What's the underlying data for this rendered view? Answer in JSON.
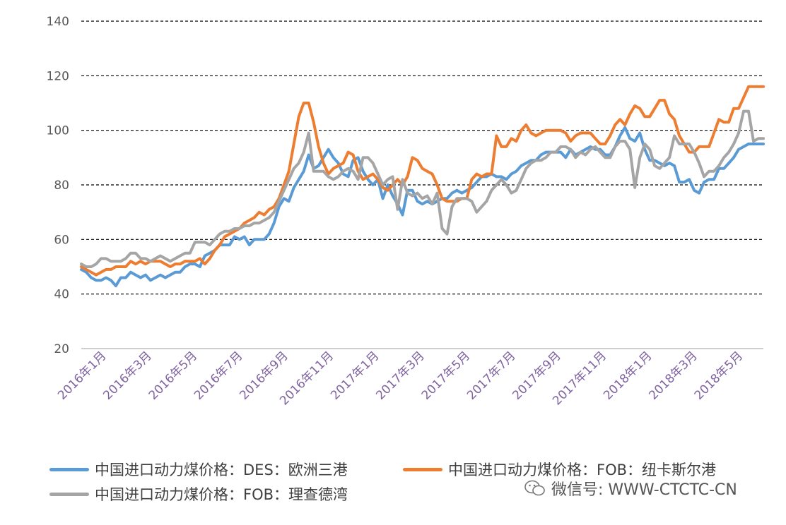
{
  "chart_data": {
    "type": "line",
    "title": "",
    "xlabel": "",
    "ylabel": "",
    "ylim": [
      20,
      140
    ],
    "yticks": [
      20,
      40,
      60,
      80,
      100,
      120,
      140
    ],
    "grid": "horizontal dashed",
    "legend_position": "bottom",
    "x_tick_labels": [
      "2016年1月",
      "2016年3月",
      "2016年5月",
      "2016年7月",
      "2016年9月",
      "2016年11月",
      "2017年1月",
      "2017年3月",
      "2017年5月",
      "2017年7月",
      "2017年9月",
      "2017年11月",
      "2018年1月",
      "2018年3月",
      "2018年5月"
    ],
    "series": [
      {
        "name": "中国进口动力煤价格：DES：欧洲三港",
        "color": "#5b9bd5",
        "values": [
          49,
          48,
          46,
          45,
          45,
          46,
          45,
          43,
          46,
          46,
          48,
          47,
          46,
          47,
          45,
          46,
          47,
          46,
          47,
          48,
          48,
          50,
          51,
          51,
          50,
          54,
          55,
          56,
          58,
          58,
          58,
          61,
          60,
          61,
          58,
          60,
          60,
          60,
          62,
          66,
          72,
          75,
          74,
          79,
          82,
          85,
          91,
          86,
          87,
          90,
          93,
          90,
          88,
          84,
          83,
          89,
          90,
          85,
          82,
          80,
          82,
          75,
          80,
          76,
          73,
          69,
          78,
          78,
          74,
          73,
          74,
          73,
          74,
          75,
          75,
          77,
          78,
          77,
          78,
          79,
          81,
          83,
          83,
          84,
          83,
          83,
          82,
          84,
          85,
          87,
          88,
          89,
          89,
          91,
          92,
          92,
          92,
          92,
          90,
          93,
          91,
          92,
          93,
          94,
          93,
          93,
          91,
          91,
          94,
          98,
          101,
          97,
          96,
          99,
          93,
          89,
          89,
          88,
          87,
          88,
          87,
          81,
          81,
          82,
          78,
          77,
          81,
          82,
          82,
          86,
          86,
          88,
          90,
          93,
          94,
          95,
          95,
          95,
          95
        ]
      },
      {
        "name": "中国进口动力煤价格：FOB：纽卡斯尔港",
        "color": "#ed7d31",
        "values": [
          50,
          49,
          48,
          47,
          48,
          49,
          49,
          50,
          50,
          50,
          52,
          51,
          52,
          51,
          52,
          52,
          52,
          51,
          50,
          51,
          51,
          52,
          52,
          52,
          53,
          51,
          53,
          56,
          58,
          61,
          62,
          63,
          64,
          66,
          67,
          68,
          70,
          69,
          71,
          72,
          75,
          80,
          85,
          95,
          105,
          110,
          110,
          103,
          94,
          88,
          84,
          86,
          87,
          88,
          92,
          91,
          85,
          82,
          83,
          84,
          82,
          79,
          78,
          80,
          82,
          80,
          83,
          90,
          89,
          86,
          85,
          84,
          80,
          75,
          74,
          74,
          74,
          75,
          75,
          82,
          84,
          83,
          84,
          84,
          98,
          94,
          94,
          97,
          96,
          100,
          102,
          99,
          98,
          99,
          100,
          100,
          100,
          100,
          99,
          96,
          98,
          99,
          99,
          99,
          97,
          95,
          95,
          98,
          102,
          104,
          102,
          106,
          109,
          108,
          105,
          105,
          108,
          111,
          111,
          106,
          104,
          98,
          95,
          92,
          92,
          94,
          94,
          94,
          99,
          104,
          103,
          103,
          108,
          108,
          112,
          116,
          116,
          116,
          116
        ]
      },
      {
        "name": "中国进口动力煤价格：FOB：理查德湾",
        "color": "#a5a5a5",
        "values": [
          51,
          50,
          50,
          51,
          53,
          53,
          52,
          52,
          52,
          53,
          55,
          55,
          53,
          53,
          52,
          53,
          54,
          53,
          52,
          53,
          54,
          55,
          55,
          59,
          59,
          59,
          58,
          60,
          62,
          63,
          63,
          64,
          64,
          65,
          65,
          66,
          66,
          67,
          68,
          70,
          74,
          78,
          82,
          86,
          88,
          92,
          99,
          85,
          85,
          85,
          83,
          82,
          83,
          85,
          86,
          85,
          82,
          90,
          90,
          88,
          84,
          80,
          82,
          83,
          71,
          82,
          77,
          76,
          77,
          75,
          76,
          73,
          77,
          64,
          62,
          72,
          75,
          75,
          75,
          74,
          70,
          72,
          74,
          78,
          80,
          82,
          80,
          77,
          78,
          82,
          86,
          88,
          89,
          89,
          90,
          92,
          92,
          94,
          94,
          93,
          90,
          92,
          91,
          93,
          94,
          92,
          90,
          90,
          94,
          96,
          96,
          93,
          79,
          90,
          95,
          93,
          87,
          86,
          88,
          90,
          98,
          95,
          95,
          95,
          92,
          88,
          83,
          85,
          85,
          87,
          90,
          92,
          95,
          99,
          107,
          107,
          96,
          97,
          97
        ]
      }
    ]
  },
  "legend": [
    {
      "label": "中国进口动力煤价格：DES：欧洲三港",
      "color": "#5b9bd5"
    },
    {
      "label": "中国进口动力煤价格：FOB：纽卡斯尔港",
      "color": "#ed7d31"
    },
    {
      "label": "中国进口动力煤价格：FOB：理查德湾",
      "color": "#a5a5a5"
    }
  ],
  "watermark": {
    "text": "微信号: WWW-CTCTC-CN",
    "icon": "wechat-icon"
  }
}
